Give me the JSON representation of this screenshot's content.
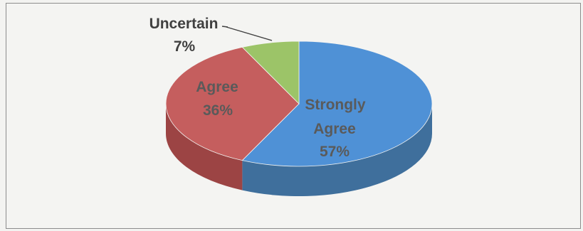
{
  "chart_data": {
    "type": "pie",
    "style": "3d",
    "title": "",
    "slices": [
      {
        "label": "Strongly Agree",
        "value": 57,
        "value_label": "57%",
        "color": "#4f91d6",
        "side_color": "#3f6f9c"
      },
      {
        "label": "Agree",
        "value": 36,
        "value_label": "36%",
        "color": "#c55e5e",
        "side_color": "#9c4444"
      },
      {
        "label": "Uncertain",
        "value": 7,
        "value_label": "7%",
        "color": "#9cc468",
        "side_color": "#7e9f52"
      }
    ],
    "legend": "none",
    "data_labels": "category and percentage"
  }
}
